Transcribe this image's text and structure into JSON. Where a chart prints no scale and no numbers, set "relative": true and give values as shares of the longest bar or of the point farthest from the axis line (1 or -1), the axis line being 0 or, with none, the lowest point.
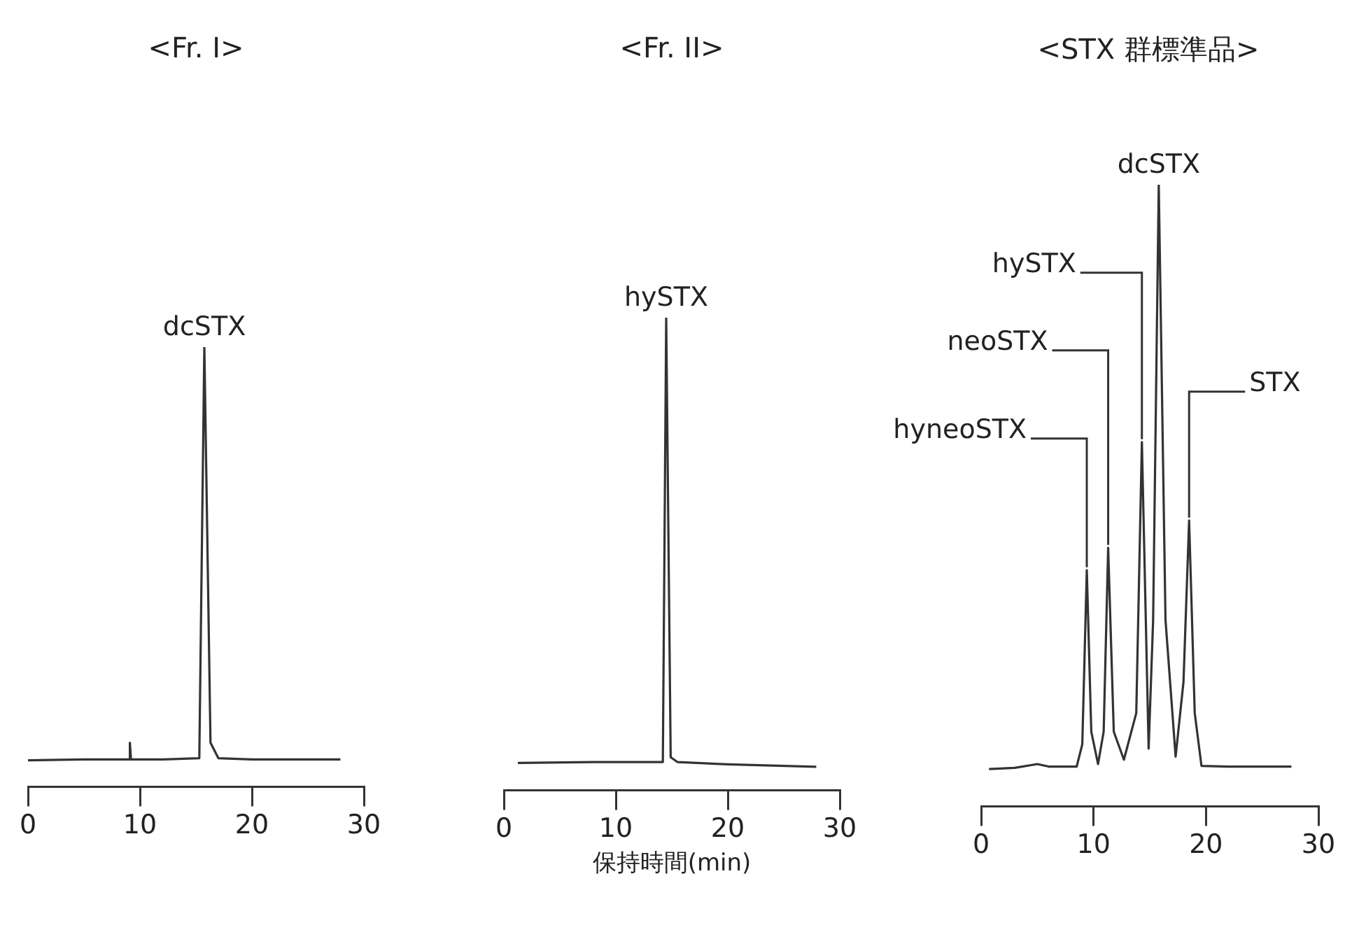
{
  "chart_data": [
    {
      "type": "line",
      "title": "<Fr. I>",
      "relative": true,
      "xlim": [
        0,
        30
      ],
      "xticks": [
        0,
        10,
        20,
        30
      ],
      "tick_labels": "x",
      "grid": false,
      "marker": "none",
      "line_style": "solid",
      "series": [
        {
          "color": "#333333",
          "x": [
            0,
            5,
            9,
            9.1,
            9.2,
            12,
            15.3,
            15.75,
            16.3,
            17,
            20,
            27.9
          ],
          "values": [
            0.06,
            0.062,
            0.062,
            0.1,
            0.062,
            0.062,
            0.065,
            1,
            0.1,
            0.065,
            0.062,
            0.062
          ]
        }
      ],
      "annotations": [
        {
          "text": "dcSTX",
          "x": 15.75,
          "y": 1
        }
      ]
    },
    {
      "type": "line",
      "title": "<Fr. II>",
      "xlabel": "保持時間(min)",
      "relative": true,
      "xlim": [
        0,
        30
      ],
      "xticks": [
        0,
        10,
        20,
        30
      ],
      "tick_labels": "x",
      "grid": false,
      "marker": "none",
      "line_style": "solid",
      "series": [
        {
          "color": "#333333",
          "x": [
            1.25,
            8,
            14.2,
            14.5,
            14.9,
            15.5,
            20,
            27.9
          ],
          "values": [
            0.058,
            0.06,
            0.06,
            1,
            0.07,
            0.06,
            0.055,
            0.05
          ]
        }
      ],
      "annotations": [
        {
          "text": "hySTX",
          "x": 14.5,
          "y": 1
        }
      ]
    },
    {
      "type": "line",
      "title": "<STX 群標準品>",
      "relative": true,
      "xlim": [
        0,
        30
      ],
      "xticks": [
        0,
        10,
        20,
        30
      ],
      "tick_labels": "x",
      "grid": false,
      "marker": "none",
      "line_style": "solid",
      "series": [
        {
          "color": "#333333",
          "x": [
            0.7,
            3,
            5,
            6,
            8.5,
            9.0,
            9.4,
            9.8,
            10.4,
            10.9,
            11.3,
            11.8,
            12.7,
            13.8,
            14.3,
            14.9,
            15.3,
            15.8,
            16.4,
            17.3,
            18.0,
            18.5,
            19.0,
            19.6,
            22,
            27.6
          ],
          "values": [
            0.06,
            0.062,
            0.068,
            0.064,
            0.064,
            0.1,
            0.38,
            0.12,
            0.068,
            0.12,
            0.416,
            0.12,
            0.075,
            0.15,
            0.586,
            0.093,
            0.3,
            1,
            0.3,
            0.08,
            0.2,
            0.46,
            0.15,
            0.065,
            0.064,
            0.064
          ]
        }
      ],
      "annotations": [
        {
          "text": "hyneoSTX",
          "x": 9.4,
          "y": 0.38
        },
        {
          "text": "neoSTX",
          "x": 11.3,
          "y": 0.416
        },
        {
          "text": "hySTX",
          "x": 14.3,
          "y": 0.586
        },
        {
          "text": "dcSTX",
          "x": 15.8,
          "y": 1
        },
        {
          "text": "STX",
          "x": 18.5,
          "y": 0.46
        }
      ]
    }
  ]
}
